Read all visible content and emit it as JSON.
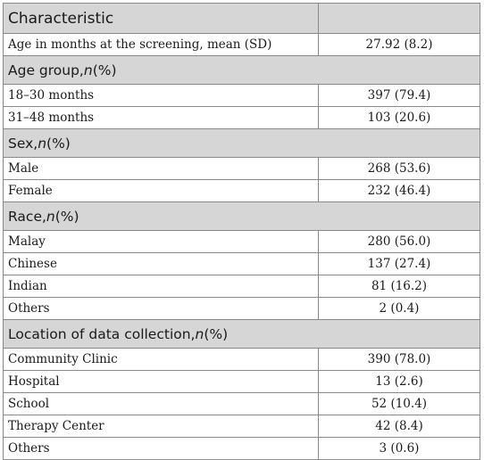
{
  "table": {
    "header": {
      "left": "Characteristic",
      "right": ""
    },
    "rows": [
      {
        "type": "data",
        "label": "Age in months at the screening, mean (SD)",
        "value": "27.92 (8.2)"
      },
      {
        "type": "section",
        "pre": "Age group, ",
        "ital": "n",
        "post": " (%)"
      },
      {
        "type": "data",
        "label": "18–30 months",
        "value": "397 (79.4)"
      },
      {
        "type": "data",
        "label": "31–48 months",
        "value": "103 (20.6)"
      },
      {
        "type": "section",
        "pre": "Sex, ",
        "ital": "n",
        "post": " (%)"
      },
      {
        "type": "data",
        "label": "Male",
        "value": "268 (53.6)"
      },
      {
        "type": "data",
        "label": "Female",
        "value": "232 (46.4)"
      },
      {
        "type": "section",
        "pre": "Race, ",
        "ital": "n",
        "post": " (%)"
      },
      {
        "type": "data",
        "label": "Malay",
        "value": "280 (56.0)"
      },
      {
        "type": "data",
        "label": "Chinese",
        "value": "137 (27.4)"
      },
      {
        "type": "data",
        "label": "Indian",
        "value": "81 (16.2)"
      },
      {
        "type": "data",
        "label": "Others",
        "value": "2 (0.4)"
      },
      {
        "type": "section",
        "pre": "Location of data collection, ",
        "ital": "n",
        "post": " (%)"
      },
      {
        "type": "data",
        "label": "Community Clinic",
        "value": "390 (78.0)"
      },
      {
        "type": "data",
        "label": "Hospital",
        "value": "13 (2.6)"
      },
      {
        "type": "data",
        "label": "School",
        "value": "52 (10.4)"
      },
      {
        "type": "data",
        "label": "Therapy Center",
        "value": "42 (8.4)"
      },
      {
        "type": "data",
        "label": "Others",
        "value": "3 (0.6)"
      }
    ]
  }
}
